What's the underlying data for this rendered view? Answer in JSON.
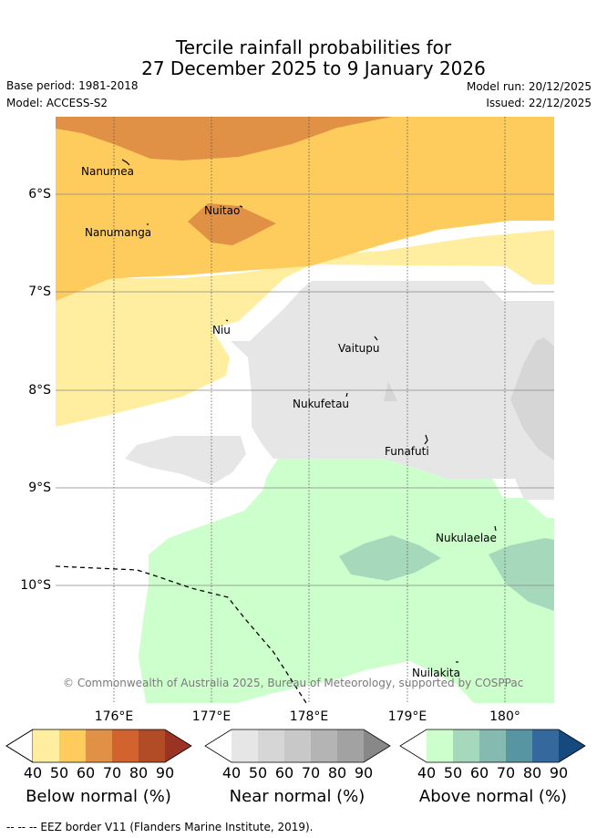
{
  "title": {
    "line1": "Tercile rainfall probabilities for",
    "line2": "27 December 2025 to 9 January 2026"
  },
  "meta": {
    "base_period": "Base period: 1981-2018",
    "model": "Model: ACCESS-S2",
    "model_run": "Model run: 20/12/2025",
    "issued": "Issued: 22/12/2025"
  },
  "axes": {
    "lat_labels": [
      "6°S",
      "7°S",
      "8°S",
      "9°S",
      "10°S"
    ],
    "lon_labels": [
      "176°E",
      "177°E",
      "178°E",
      "179°E",
      "180°"
    ]
  },
  "places": {
    "nanumea": "Nanumea",
    "nuitao": "Nuitao",
    "nanumanga": "Nanumanga",
    "niu": "Niu",
    "vaitupu": "Vaitupu",
    "nukufetau": "Nukufetau",
    "funafuti": "Funafuti",
    "nukulaelae": "Nukulaelae",
    "nuilakita": "Nuilakita"
  },
  "copyright": "© Commonwealth of Australia 2025, Bureau of Meteorology, supported by COSPPac",
  "legend": {
    "ticks": [
      "40",
      "50",
      "60",
      "70",
      "80",
      "90"
    ],
    "below": {
      "title": "Below normal (%)",
      "colors": [
        "#ffeda0",
        "#fecc5c",
        "#e09145",
        "#d2632e",
        "#b24c26",
        "#9a3323"
      ]
    },
    "near": {
      "title": "Near normal (%)",
      "colors": [
        "#e6e6e6",
        "#d6d6d6",
        "#c8c8c8",
        "#b4b4b4",
        "#a2a2a2",
        "#888888"
      ]
    },
    "above": {
      "title": "Above normal (%)",
      "colors": [
        "#ccffcc",
        "#a6d9bb",
        "#85bab1",
        "#5895a3",
        "#35689c",
        "#16497e"
      ]
    }
  },
  "eez_note": "--  --  -- EEZ border V11 (Flanders Marine Institute, 2019)."
}
